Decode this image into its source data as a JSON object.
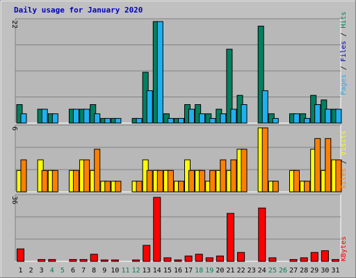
{
  "chart_data": {
    "type": "bar",
    "title": "Daily usage for January 2020",
    "categories": [
      "1",
      "2",
      "3",
      "4",
      "5",
      "6",
      "7",
      "8",
      "9",
      "10",
      "11",
      "12",
      "13",
      "14",
      "15",
      "16",
      "17",
      "18",
      "19",
      "20",
      "21",
      "22",
      "23",
      "24",
      "25",
      "26",
      "27",
      "28",
      "29",
      "30",
      "31"
    ],
    "weekend_days": [
      "4",
      "5",
      "11",
      "12",
      "18",
      "19",
      "25",
      "26"
    ],
    "colors": {
      "background": "#c0c0c0",
      "plot_bg": "#b8b8b8",
      "title": "#0000c0",
      "weekday_label": "#000000",
      "weekend_label": "#008050",
      "hits": "#008060",
      "files": "#20b0f0",
      "pages": "#20b0f0",
      "visits": "#ffff00",
      "sites": "#ff8000",
      "kbytes": "#ff0000",
      "gridline": "#808080"
    },
    "panels": [
      {
        "name": "hits-files-pages",
        "ymax_label": "22",
        "ylim": [
          0,
          22
        ],
        "legend": [
          {
            "text": "Pages",
            "color": "#20b0f0"
          },
          {
            "text": " / ",
            "color": "#000000"
          },
          {
            "text": "Files",
            "color": "#0000c0"
          },
          {
            "text": " / ",
            "color": "#000000"
          },
          {
            "text": "Hits",
            "color": "#008060"
          }
        ],
        "series": [
          {
            "name": "Hits",
            "color": "#008060",
            "values": [
              4,
              0,
              3,
              2,
              0,
              3,
              3,
              4,
              1,
              1,
              0,
              1,
              11,
              22,
              2,
              1,
              4,
              4,
              2,
              3,
              16,
              6,
              0,
              21,
              2,
              0,
              2,
              2,
              6,
              5,
              3
            ]
          },
          {
            "name": "Files",
            "color": "#20b0f0",
            "values": [
              2,
              0,
              3,
              2,
              0,
              3,
              3,
              2,
              1,
              1,
              0,
              1,
              7,
              22,
              1,
              1,
              3,
              2,
              1,
              2,
              3,
              4,
              0,
              7,
              1,
              0,
              2,
              1,
              4,
              3,
              3
            ]
          }
        ]
      },
      {
        "name": "visits-sites",
        "ymax_label": "6",
        "ylim": [
          0,
          6
        ],
        "legend": [
          {
            "text": "Sites",
            "color": "#ff8000"
          },
          {
            "text": " / ",
            "color": "#000000"
          },
          {
            "text": "Visits",
            "color": "#ffff00"
          }
        ],
        "series": [
          {
            "name": "Visits",
            "color": "#ffff00",
            "values": [
              2,
              0,
              3,
              2,
              0,
              2,
              3,
              2,
              1,
              1,
              0,
              1,
              3,
              2,
              2,
              1,
              3,
              2,
              1,
              2,
              2,
              4,
              0,
              6,
              1,
              0,
              2,
              1,
              4,
              2,
              3
            ]
          },
          {
            "name": "Sites",
            "color": "#ff8000",
            "values": [
              3,
              0,
              2,
              2,
              0,
              2,
              3,
              4,
              1,
              1,
              0,
              1,
              2,
              2,
              2,
              1,
              2,
              2,
              2,
              3,
              3,
              4,
              0,
              6,
              1,
              0,
              2,
              1,
              5,
              5,
              3
            ]
          }
        ]
      },
      {
        "name": "kbytes",
        "ymax_label": "36",
        "ylim": [
          0,
          36
        ],
        "legend": [
          {
            "text": "KBytes",
            "color": "#ff0000"
          }
        ],
        "series": [
          {
            "name": "KBytes",
            "color": "#ff0000",
            "values": [
              7,
              0,
              1,
              1,
              0,
              1,
              1,
              4,
              0.5,
              0.5,
              0,
              0.5,
              9,
              36,
              2,
              0.5,
              3,
              4,
              2,
              3,
              27,
              5,
              0,
              30,
              2,
              0,
              1,
              2,
              5,
              6,
              1
            ]
          }
        ]
      }
    ]
  }
}
